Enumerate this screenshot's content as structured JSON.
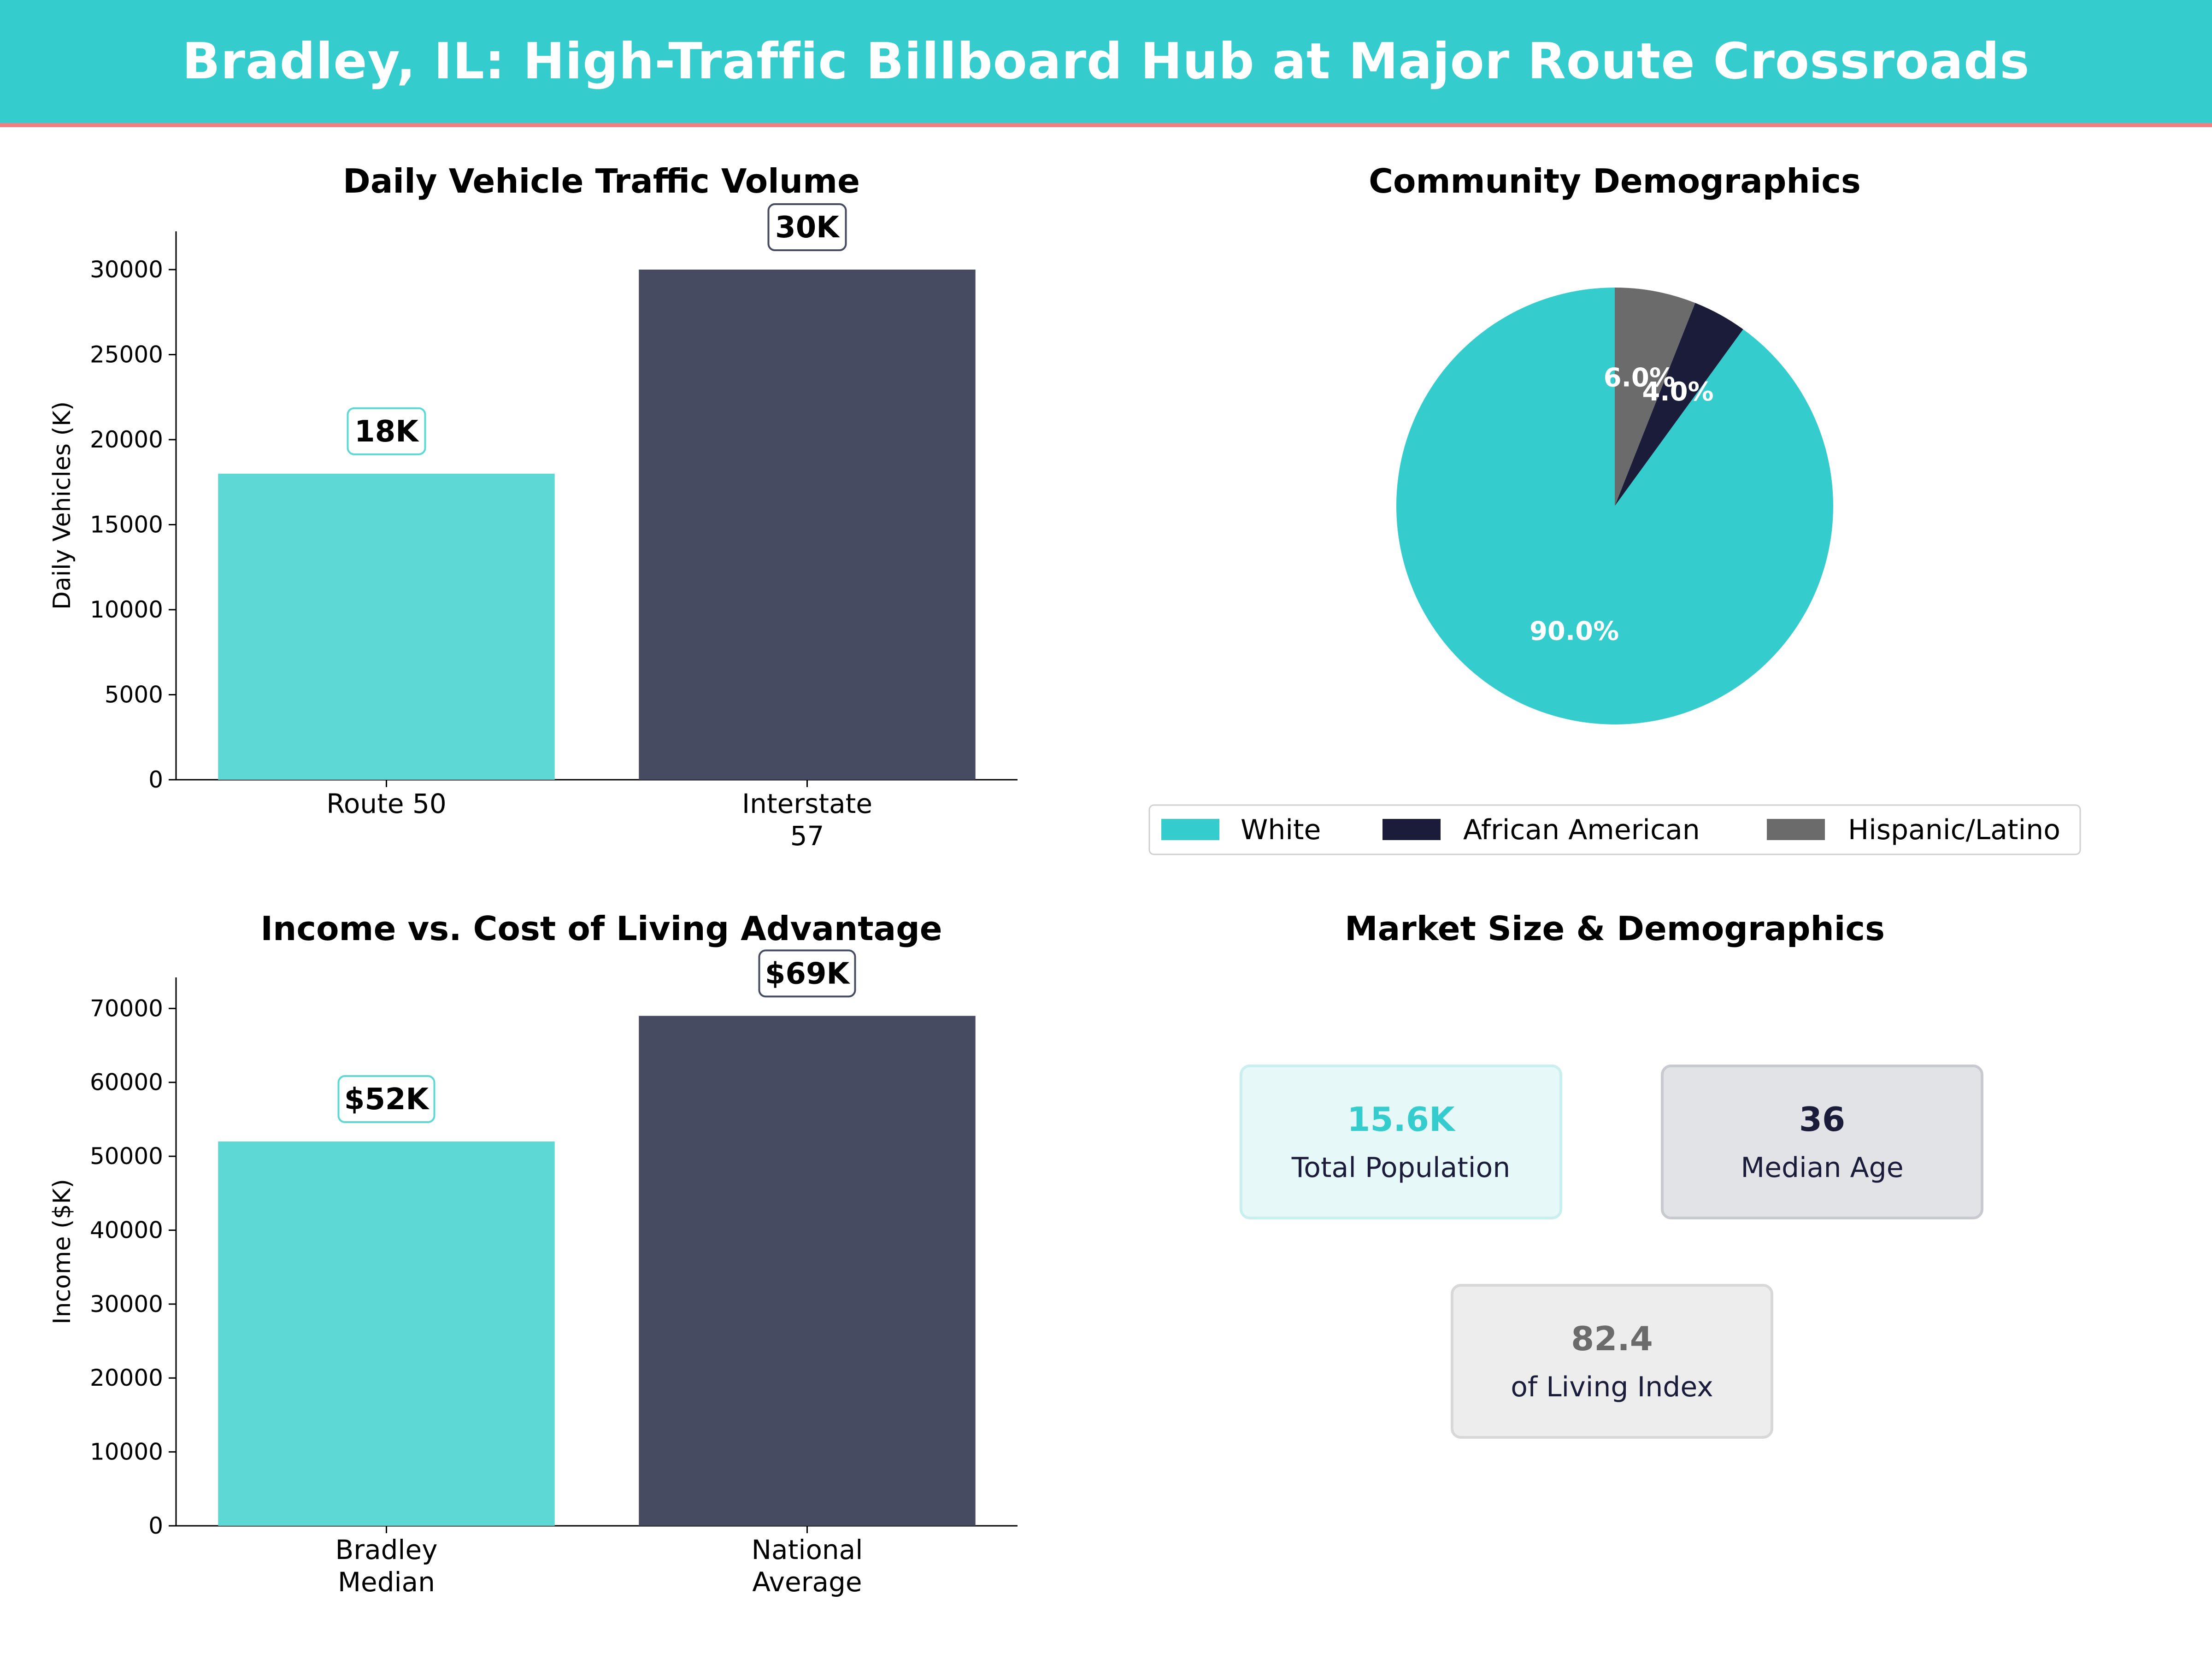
{
  "page_title": "Bradley, IL: High-Traffic Billboard Hub at Major Route Crossroads",
  "colors": {
    "teal": "#34cccd",
    "teal_bar": "#5dd8d5",
    "navy_bar": "#464b61",
    "navy": "#1a1c3a",
    "gray": "#6b6b6b",
    "header_border": "#f08080"
  },
  "chart_data": [
    {
      "type": "bar",
      "title": "Daily Vehicle Traffic Volume",
      "categories": [
        "Route 50",
        "Interstate\n57"
      ],
      "values": [
        18000,
        30000
      ],
      "data_labels": [
        "18K",
        "30K"
      ],
      "ylabel": "Daily Vehicles (K)",
      "yticks": [
        0,
        5000,
        10000,
        15000,
        20000,
        25000,
        30000
      ],
      "ylim": [
        0,
        32250
      ],
      "bar_colors": [
        "#5dd8d5",
        "#464b61"
      ],
      "label_border_colors": [
        "#5dd8d5",
        "#464b61"
      ],
      "grid": false
    },
    {
      "type": "pie",
      "title": "Community Demographics",
      "labels": [
        "White",
        "African American",
        "Hispanic/Latino"
      ],
      "values": [
        90.0,
        4.0,
        6.0
      ],
      "value_labels": [
        "90.0%",
        "4.0%",
        "6.0%"
      ],
      "colors": [
        "#34cccd",
        "#1a1c3a",
        "#6b6b6b"
      ],
      "legend_position": "bottom"
    },
    {
      "type": "bar",
      "title": "Income vs. Cost of Living Advantage",
      "categories": [
        "Bradley\nMedian",
        "National\nAverage"
      ],
      "values": [
        52000,
        69000
      ],
      "data_labels": [
        "$52K",
        "$69K"
      ],
      "ylabel": "Income ($K)",
      "yticks": [
        0,
        10000,
        20000,
        30000,
        40000,
        50000,
        60000,
        70000
      ],
      "ylim": [
        0,
        74200
      ],
      "bar_colors": [
        "#5dd8d5",
        "#464b61"
      ],
      "label_border_colors": [
        "#5dd8d5",
        "#464b61"
      ],
      "grid": false
    }
  ],
  "market_panel": {
    "title": "Market Size & Demographics",
    "cards": [
      {
        "value": "15.6K",
        "label": "Total Population",
        "value_color": "#34cccd",
        "bg": "#e6f8f8",
        "border": "#c9efef"
      },
      {
        "value": "36",
        "label": "Median Age",
        "value_color": "#1a1c3a",
        "bg": "#e2e3e7",
        "border": "#c9cad0"
      },
      {
        "value": "82.4",
        "label": "of Living Index",
        "value_color": "#6b6b6b",
        "bg": "#ededed",
        "border": "#d8d8d8"
      }
    ]
  }
}
